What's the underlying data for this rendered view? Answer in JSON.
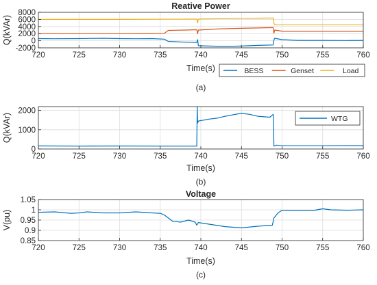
{
  "colors": {
    "blue": "#0072BD",
    "red": "#D95319",
    "yellow": "#EDB120"
  },
  "chart_data": [
    {
      "type": "line",
      "title": "Reative Power",
      "xlabel": "Time(s)",
      "ylabel": "Q(kVAr)",
      "caption": "(a)",
      "xlim": [
        720,
        760
      ],
      "ylim": [
        -2000,
        8000
      ],
      "xticks": [
        720,
        725,
        730,
        735,
        740,
        745,
        750,
        755,
        760
      ],
      "yticks": [
        -2000,
        0,
        2000,
        4000,
        6000,
        8000
      ],
      "grid": true,
      "legend": "bottom-right, horizontal",
      "series": [
        {
          "name": "BESS",
          "color": "#0072BD",
          "x": [
            720,
            722,
            725,
            728,
            730,
            732,
            734,
            735.5,
            736,
            738,
            739.5,
            739.6,
            739.7,
            741,
            743,
            745,
            747,
            748.9,
            749,
            749.1,
            750,
            752,
            755,
            758,
            760
          ],
          "y": [
            600,
            550,
            600,
            700,
            600,
            550,
            600,
            450,
            -200,
            -400,
            -500,
            300,
            -1400,
            -1500,
            -1600,
            -1500,
            -1300,
            -1200,
            200,
            700,
            300,
            100,
            100,
            50,
            100
          ]
        },
        {
          "name": "Genset",
          "color": "#D95319",
          "x": [
            720,
            725,
            730,
            734,
            735.5,
            736,
            738,
            739.5,
            739.6,
            739.7,
            742,
            745,
            748.9,
            749,
            749.1,
            750,
            755,
            760
          ],
          "y": [
            2000,
            2000,
            2000,
            2050,
            2100,
            2900,
            3000,
            3100,
            2000,
            3000,
            3300,
            3500,
            3700,
            2100,
            3000,
            2700,
            2700,
            2700
          ]
        },
        {
          "name": "Load",
          "color": "#EDB120",
          "x": [
            720,
            730,
            739.5,
            739.6,
            739.7,
            745,
            748.9,
            749,
            749.1,
            750,
            760
          ],
          "y": [
            6000,
            6000,
            6100,
            5000,
            6100,
            6300,
            6400,
            5000,
            4500,
            4500,
            4500
          ]
        }
      ]
    },
    {
      "type": "line",
      "title": "",
      "xlabel": "Time(s)",
      "ylabel": "Q(kVAr)",
      "caption": "(b)",
      "xlim": [
        720,
        760
      ],
      "ylim": [
        0,
        2200
      ],
      "xticks": [
        720,
        725,
        730,
        735,
        740,
        745,
        750,
        755,
        760
      ],
      "yticks": [
        0,
        1000,
        2000
      ],
      "grid": true,
      "legend": "top-right",
      "series": [
        {
          "name": "WTG",
          "color": "#0072BD",
          "x": [
            720,
            725,
            730,
            735,
            739.5,
            739.55,
            739.6,
            739.7,
            741,
            742,
            743,
            744,
            745,
            746,
            747,
            748.5,
            748.9,
            748.95,
            749,
            749.3,
            750,
            755,
            760
          ],
          "y": [
            160,
            150,
            155,
            150,
            150,
            2200,
            1350,
            1450,
            1550,
            1600,
            1700,
            1780,
            1850,
            1800,
            1700,
            1650,
            1800,
            1400,
            150,
            200,
            170,
            170,
            175
          ]
        }
      ]
    },
    {
      "type": "line",
      "title": "Voltage",
      "xlabel": "Time(s)",
      "ylabel": "V(pu)",
      "caption": "(c)",
      "xlim": [
        720,
        760
      ],
      "ylim": [
        0.85,
        1.05
      ],
      "xticks": [
        720,
        725,
        730,
        735,
        740,
        745,
        750,
        755,
        760
      ],
      "yticks": [
        0.85,
        0.9,
        0.95,
        1,
        1.05
      ],
      "grid": true,
      "series": [
        {
          "name": "Voltage",
          "color": "#0072BD",
          "x": [
            720,
            722,
            724,
            725,
            726,
            728,
            730,
            732,
            734,
            735,
            735.5,
            736.5,
            737.5,
            738.5,
            739.3,
            739.5,
            739.7,
            741,
            743,
            745,
            747,
            748.8,
            749,
            749.5,
            750,
            752,
            754,
            755,
            756,
            758,
            760
          ],
          "y": [
            0.988,
            0.99,
            0.983,
            0.985,
            0.99,
            0.985,
            0.985,
            0.99,
            0.985,
            0.983,
            0.975,
            0.945,
            0.94,
            0.95,
            0.94,
            0.925,
            0.938,
            0.93,
            0.918,
            0.912,
            0.92,
            0.925,
            0.96,
            0.985,
            0.998,
            0.998,
            0.998,
            1.005,
            1.0,
            0.998,
            1.0
          ]
        }
      ]
    }
  ]
}
